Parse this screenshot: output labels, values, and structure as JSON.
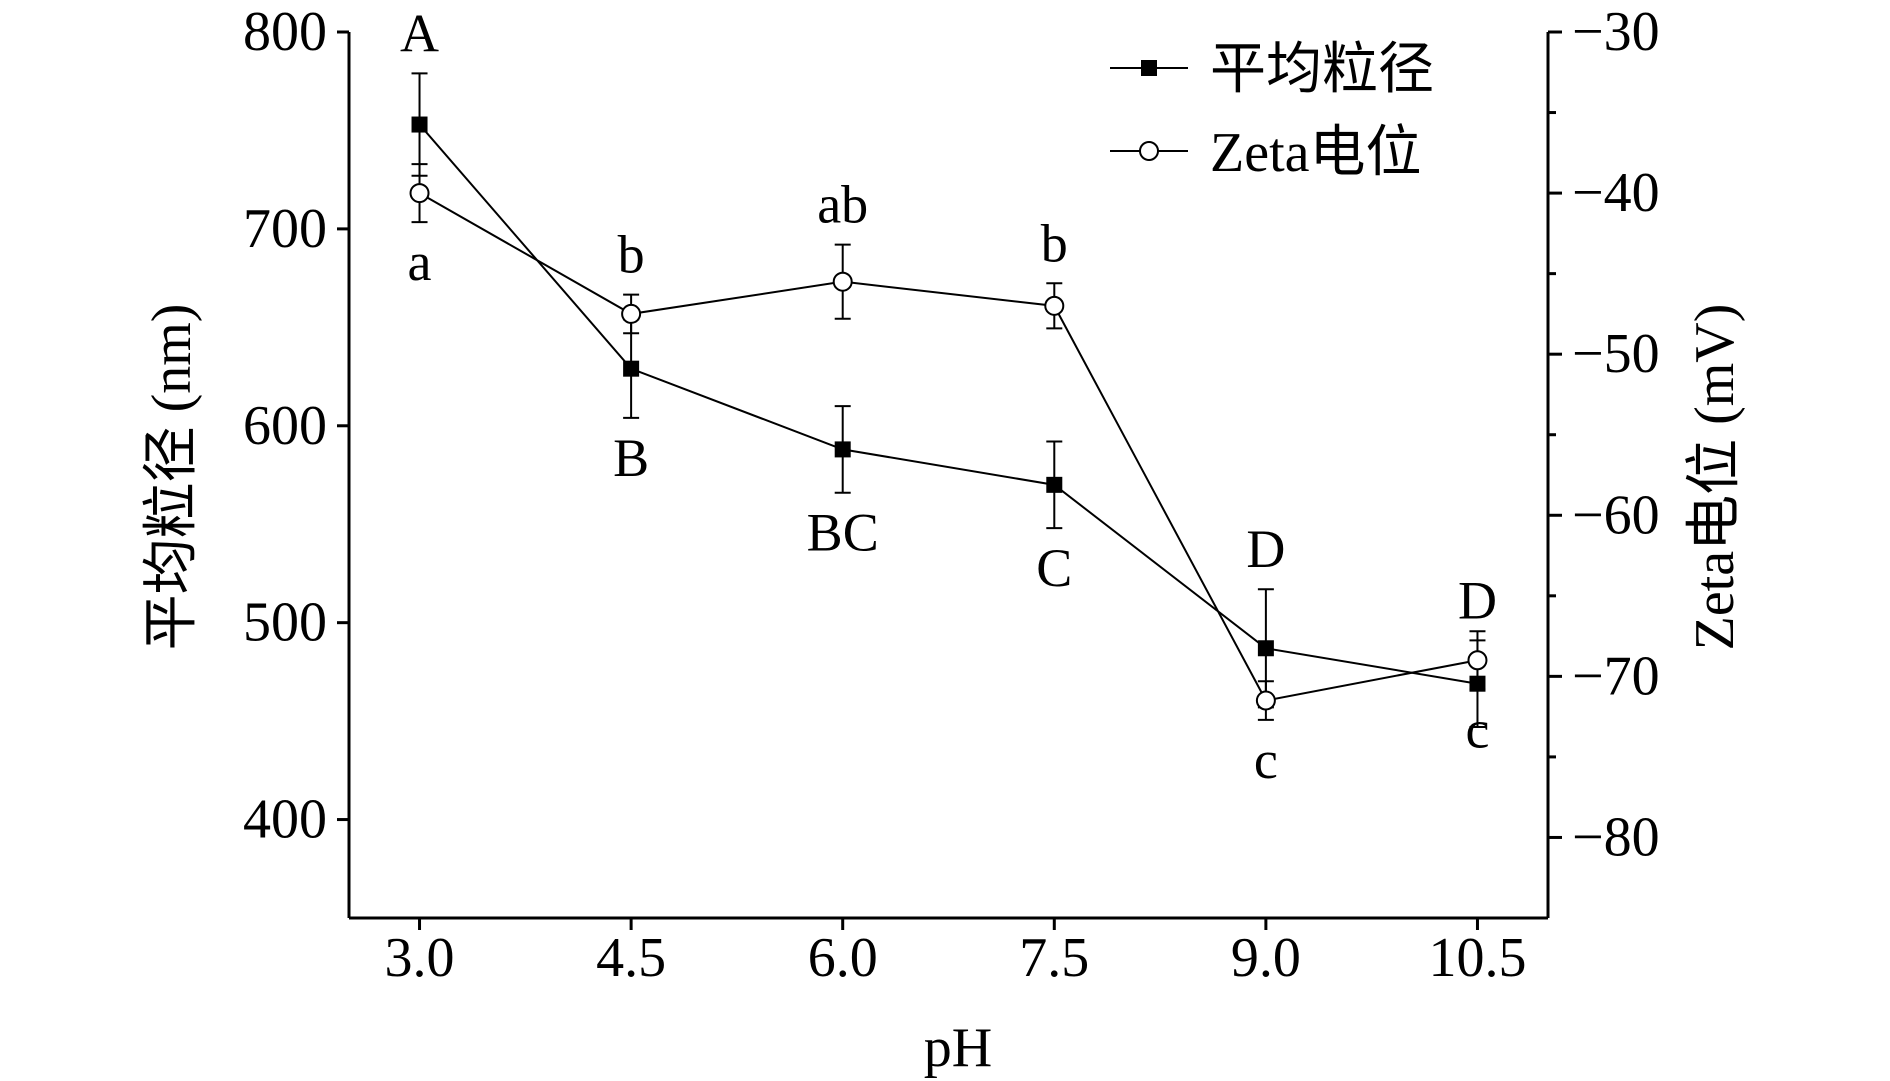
{
  "chart_data": {
    "type": "line",
    "title": "",
    "xlabel": "pH",
    "ylabel": "平均粒径 (nm)",
    "y2label": "Zeta电位 (mV)",
    "x": [
      3.0,
      4.5,
      6.0,
      7.5,
      9.0,
      10.5
    ],
    "x_tick_labels": [
      "3.0",
      "4.5",
      "6.0",
      "7.5",
      "9.0",
      "10.5"
    ],
    "xlim": [
      2.5,
      11.0
    ],
    "ylim": [
      350,
      800
    ],
    "y_ticks": [
      400,
      500,
      600,
      700,
      800
    ],
    "y_tick_labels": [
      "400",
      "500",
      "600",
      "700",
      "800"
    ],
    "y2lim": [
      -85,
      -30
    ],
    "y2_ticks": [
      -80,
      -70,
      -60,
      -50,
      -40,
      -30
    ],
    "y2_tick_labels": [
      "−80",
      "−70",
      "−60",
      "−50",
      "−40",
      "−30"
    ],
    "legend_position": "top-right",
    "series": [
      {
        "name": "平均粒径",
        "axis": "left",
        "marker": "filled-square",
        "values": [
          753,
          629,
          588,
          570,
          487,
          469
        ],
        "errors": [
          26,
          25,
          22,
          22,
          30,
          22
        ],
        "labels": [
          "A",
          "B",
          "BC",
          "C",
          "D",
          "D"
        ],
        "label_positions": [
          "above",
          "below",
          "below",
          "below",
          "above",
          "above"
        ]
      },
      {
        "name": "Zeta电位",
        "axis": "right",
        "marker": "open-circle",
        "values": [
          -40.0,
          -47.5,
          -45.5,
          -47.0,
          -71.5,
          -69.0
        ],
        "errors": [
          1.8,
          1.2,
          2.3,
          1.4,
          1.2,
          1.8
        ],
        "labels": [
          "a",
          "b",
          "ab",
          "b",
          "c",
          "c"
        ],
        "label_positions": [
          "below",
          "above",
          "above",
          "above",
          "below",
          "below"
        ]
      }
    ],
    "colors": {
      "line": "#000000",
      "axis": "#000000",
      "background": "#ffffff"
    }
  }
}
